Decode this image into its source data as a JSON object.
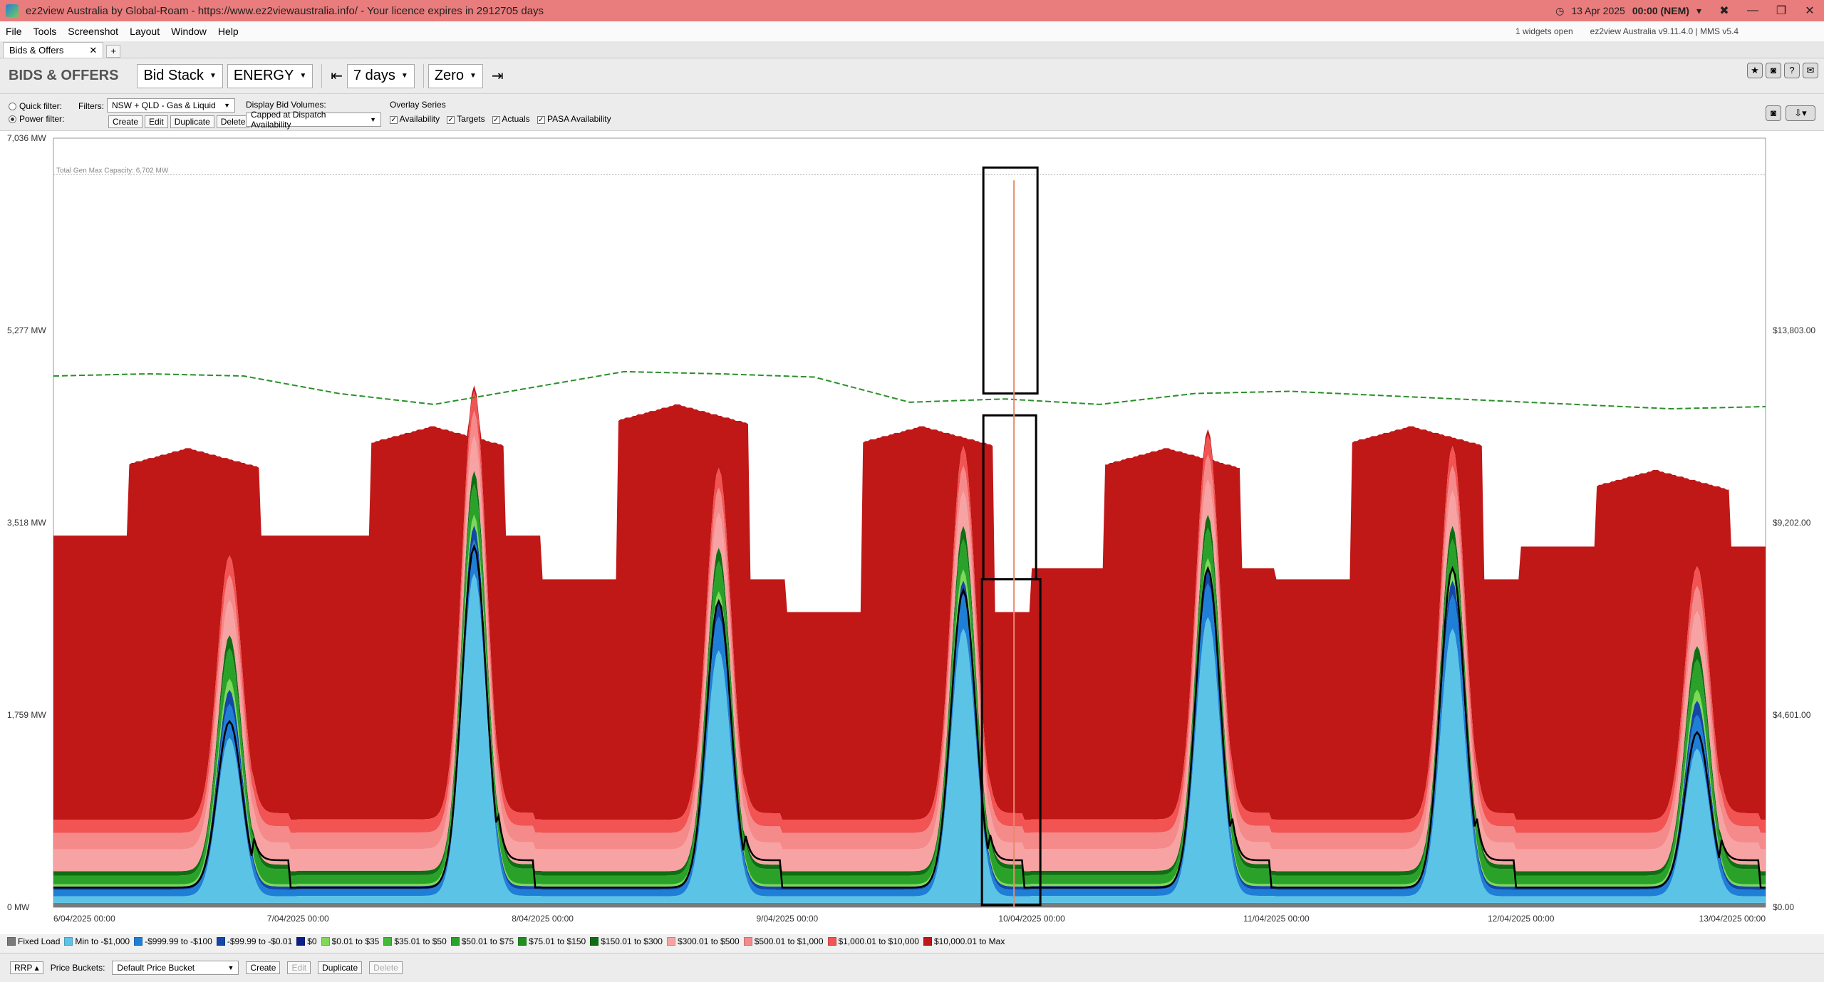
{
  "window": {
    "title": "ez2view Australia by Global-Roam - https://www.ez2viewaustralia.info/ - Your licence expires in 2912705 days",
    "date": "13 Apr 2025",
    "time": "00:00 (NEM)"
  },
  "menu": {
    "items": [
      "File",
      "Tools",
      "Screenshot",
      "Layout",
      "Window",
      "Help"
    ],
    "widgets_open": "1 widgets open",
    "version": "ez2view Australia v9.11.4.0 | MMS v5.4"
  },
  "tabs": [
    {
      "label": "Bids & Offers"
    }
  ],
  "toolbar": {
    "title": "BIDS & OFFERS",
    "view": "Bid Stack",
    "market": "ENERGY",
    "period": "7 days",
    "baseline": "Zero"
  },
  "filters": {
    "quick_filter": "Quick filter:",
    "power_filter": "Power filter:",
    "filters_label": "Filters:",
    "filter_value": "NSW + QLD - Gas & Liquid",
    "create": "Create",
    "edit": "Edit",
    "duplicate": "Duplicate",
    "delete": "Delete",
    "display_label": "Display Bid Volumes:",
    "display_value": "Capped at Dispatch Availability",
    "overlay_label": "Overlay Series",
    "overlays": [
      "Availability",
      "Targets",
      "Actuals",
      "PASA Availability"
    ]
  },
  "chart_data": {
    "type": "area",
    "y_left_ticks": [
      "7,036 MW",
      "5,277 MW",
      "3,518 MW",
      "1,759 MW",
      "0 MW"
    ],
    "y_right_ticks": [
      "$13,803.00",
      "$9,202.00",
      "$4,601.00",
      "$0.00"
    ],
    "x_ticks": [
      "6/04/2025 00:00",
      "7/04/2025 00:00",
      "8/04/2025 00:00",
      "9/04/2025 00:00",
      "10/04/2025 00:00",
      "11/04/2025 00:00",
      "12/04/2025 00:00",
      "13/04/2025 00:00"
    ],
    "y_max_mw": 7036,
    "capacity_label": "Total Gen Max Capacity: 6,702 MW",
    "capacity_mw": 6702,
    "days": [
      {
        "day": "6/04/2025",
        "base": 150,
        "peak_low": 1600,
        "peak_mid": 1800,
        "target": 1700,
        "total_night": 3400,
        "total_day": 4200
      },
      {
        "day": "7/04/2025",
        "base": 160,
        "peak_low": 3100,
        "peak_mid": 3500,
        "target": 3300,
        "total_night": 3400,
        "total_day": 4400
      },
      {
        "day": "8/04/2025",
        "base": 150,
        "peak_low": 2400,
        "peak_mid": 2900,
        "target": 2800,
        "total_night": 3000,
        "total_day": 4600
      },
      {
        "day": "9/04/2025",
        "base": 150,
        "peak_low": 2600,
        "peak_mid": 2900,
        "target": 2900,
        "total_night": 2700,
        "total_day": 4400
      },
      {
        "day": "10/04/2025",
        "base": 160,
        "peak_low": 2700,
        "peak_mid": 3200,
        "target": 3100,
        "total_night": 3100,
        "total_day": 4200
      },
      {
        "day": "11/04/2025",
        "base": 150,
        "peak_low": 2600,
        "peak_mid": 3200,
        "target": 3100,
        "total_night": 3000,
        "total_day": 4400
      },
      {
        "day": "12/04/2025",
        "base": 150,
        "peak_low": 1500,
        "peak_mid": 1700,
        "target": 1600,
        "total_night": 3300,
        "total_day": 4000
      }
    ],
    "availability_mw": [
      4860,
      4880,
      4860,
      4700,
      4600,
      4750,
      4900,
      4880,
      4850,
      4620,
      4650,
      4600,
      4700,
      4720,
      4680,
      4640,
      4600,
      4560,
      4580
    ],
    "series": [
      {
        "name": "Fixed Load",
        "color": "#7a7a7a"
      },
      {
        "name": "Min to -$1,000",
        "color": "#5bc4e6"
      },
      {
        "name": "-$999.99 to -$100",
        "color": "#1f7fd6"
      },
      {
        "name": "-$99.99 to -$0.01",
        "color": "#1447a8"
      },
      {
        "name": "$0",
        "color": "#0a1f8a"
      },
      {
        "name": "$0.01 to $35",
        "color": "#7ed957"
      },
      {
        "name": "$35.01 to $50",
        "color": "#43b83a"
      },
      {
        "name": "$50.01 to $75",
        "color": "#2aa22a"
      },
      {
        "name": "$75.01 to $150",
        "color": "#1d8f1d"
      },
      {
        "name": "$150.01 to $300",
        "color": "#0f6e12"
      },
      {
        "name": "$300.01 to $500",
        "color": "#f7a3a3"
      },
      {
        "name": "$500.01 to $1,000",
        "color": "#f58a8a"
      },
      {
        "name": "$1,000.01 to $10,000",
        "color": "#f25353"
      },
      {
        "name": "$10,000.01 to Max",
        "color": "#c01717"
      }
    ]
  },
  "bottom": {
    "rrp": "RRP",
    "price_buckets": "Price Buckets:",
    "bucket_value": "Default Price Bucket",
    "create": "Create",
    "edit": "Edit",
    "duplicate": "Duplicate",
    "delete": "Delete"
  }
}
